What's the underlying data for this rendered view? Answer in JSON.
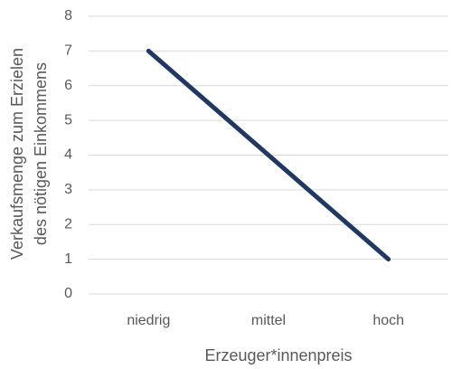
{
  "chart_data": {
    "type": "line",
    "ylabel": [
      "Verkaufsmenge zum Erzielen",
      "des nötigen Einkommens"
    ],
    "xlabel": "Erzeuger*innenpreis",
    "categories": [
      "niedrig",
      "mittel",
      "hoch"
    ],
    "values": [
      7,
      4,
      1
    ],
    "color": "#1f3864",
    "ylim": [
      0,
      8
    ],
    "yticks": [
      0,
      1,
      2,
      3,
      4,
      5,
      6,
      7,
      8
    ],
    "grid": true
  }
}
